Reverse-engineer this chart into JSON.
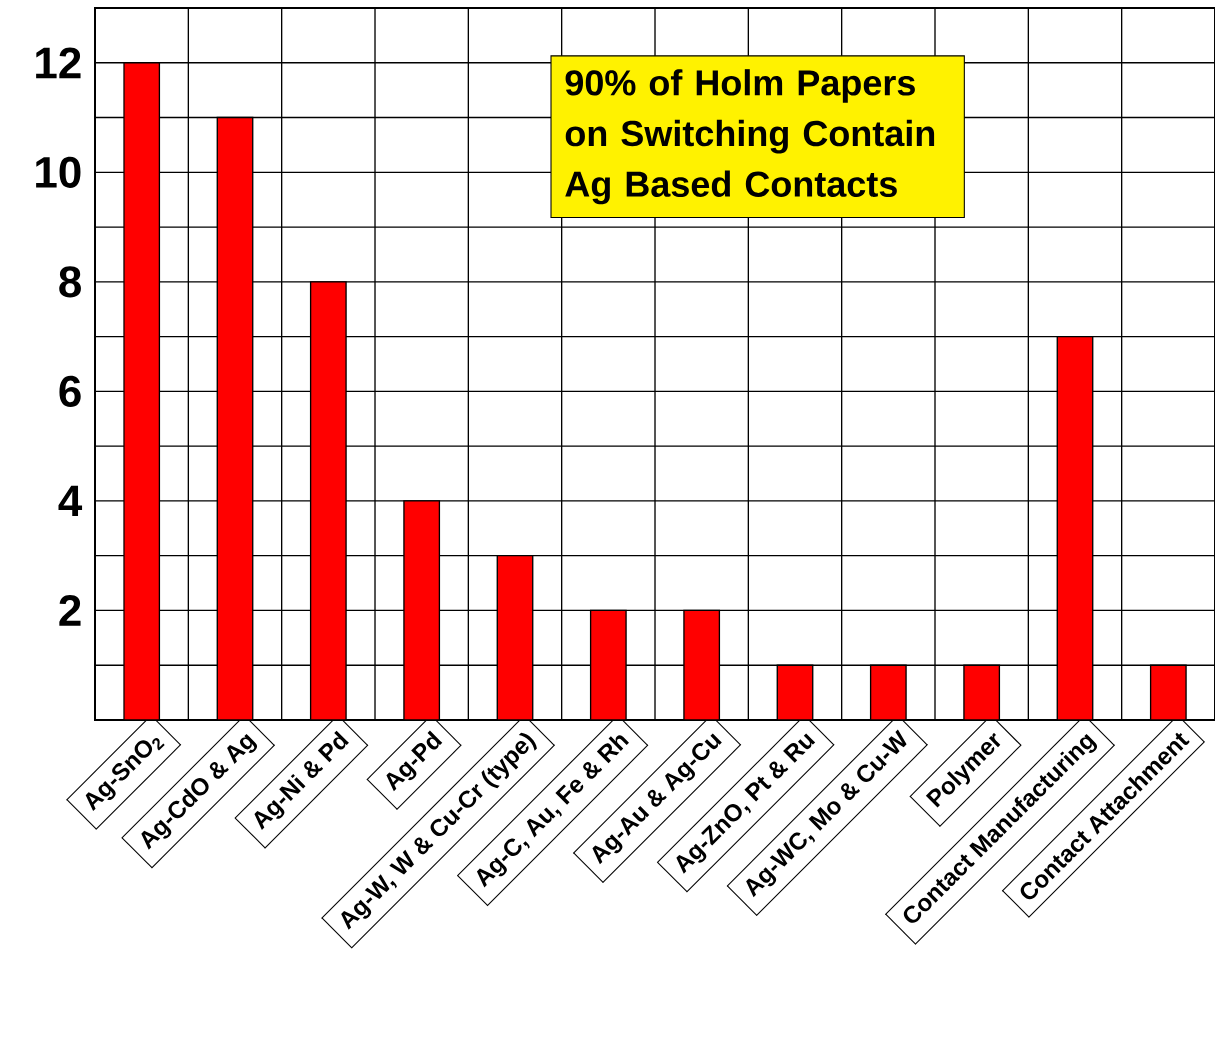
{
  "chart_data": {
    "type": "bar",
    "categories": [
      "Ag-SnO$_{2}$",
      "Ag-CdO & Ag",
      "Ag-Ni & Pd",
      "Ag-Pd",
      "Ag-W, W & Cu-Cr (type)",
      "Ag-C, Au, Fe & Rh",
      "Ag-Au & Ag-Cu",
      "Ag-ZnO, Pt & Ru",
      "Ag-WC, Mo & Cu-W",
      "Polymer",
      "Contact Manufacturing",
      "Contact Attachment"
    ],
    "values": [
      12,
      11,
      8,
      4,
      3,
      2,
      2,
      1,
      1,
      1,
      7,
      1
    ],
    "color": "#ff0000",
    "ylim": [
      0,
      13
    ],
    "yticks": [
      {
        "value": 0,
        "label": null
      },
      {
        "value": 1,
        "label": null
      },
      2,
      {
        "value": 3,
        "label": null
      },
      4,
      {
        "value": 5,
        "label": null
      },
      6,
      {
        "value": 7,
        "label": null
      },
      8,
      {
        "value": 9,
        "label": null
      },
      10,
      {
        "value": 11,
        "label": null
      },
      12
    ],
    "grid": true,
    "annotations": [
      "90% of Holm Papers on Switching Contain Ag Based Contacts"
    ]
  }
}
